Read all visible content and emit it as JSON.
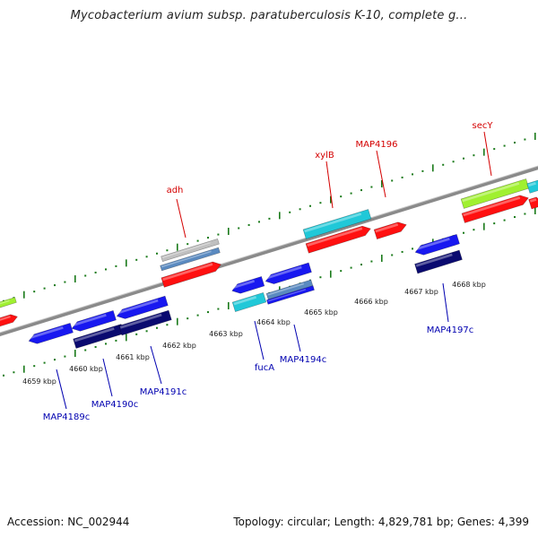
{
  "title": "Mycobacterium avium subsp. paratuberculosis K-10, complete g...",
  "footer": {
    "accession": "Accession: NC_002944",
    "stats": "Topology: circular; Length: 4,829,781 bp; Genes: 4,399"
  },
  "scale_labels": [
    "4659 kbp",
    "4660 kbp",
    "4661 kbp",
    "4662 kbp",
    "4663 kbp",
    "4664 kbp",
    "4665 kbp",
    "4666 kbp",
    "4667 kbp",
    "4668 kbp"
  ],
  "genes_forward": [
    "adh",
    "xylB",
    "MAP4196",
    "secY"
  ],
  "genes_reverse": [
    "MAP4189c",
    "MAP4190c",
    "MAP4191c",
    "fucA",
    "MAP4194c",
    "MAP4197c"
  ],
  "colors": {
    "forward_label": "#d40000",
    "reverse_label": "#0000b0",
    "backbone": "#8a8a8a",
    "ticks": "#1a7a1a",
    "red_feature": "#ff1010",
    "blue_feature": "#1818f0",
    "navy_feature": "#0a0a70",
    "cyan_feature": "#20c8d8",
    "green_feature": "#a0f030",
    "gray_feature": "#c0c0c0",
    "steel_feature": "#5a8ac0"
  }
}
